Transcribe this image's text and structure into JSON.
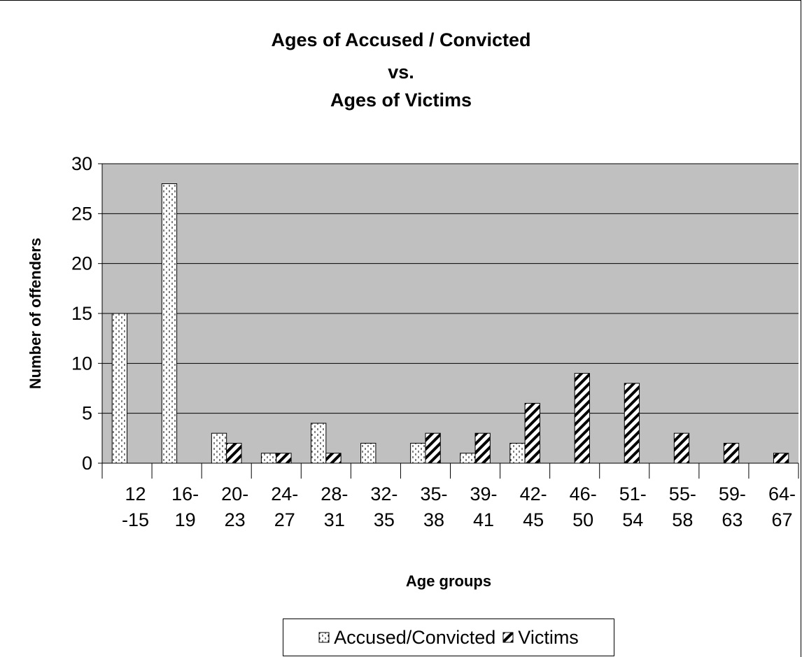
{
  "chart_data": {
    "type": "bar",
    "title": [
      "Ages of Accused / Convicted",
      "vs.",
      "Ages of Victims"
    ],
    "xlabel": "Age groups",
    "ylabel": "Number of offenders",
    "ylim": [
      0,
      30
    ],
    "yticks": [
      0,
      5,
      10,
      15,
      20,
      25,
      30
    ],
    "categories": [
      [
        "12",
        "-15"
      ],
      [
        "16-",
        "19"
      ],
      [
        "20-",
        "23"
      ],
      [
        "24-",
        "27"
      ],
      [
        "28-",
        "31"
      ],
      [
        "32-",
        "35"
      ],
      [
        "35-",
        "38"
      ],
      [
        "39-",
        "41"
      ],
      [
        "42-",
        "45"
      ],
      [
        "46-",
        "50"
      ],
      [
        "51-",
        "54"
      ],
      [
        "55-",
        "58"
      ],
      [
        "59-",
        "63"
      ],
      [
        "64-",
        "67"
      ]
    ],
    "series": [
      {
        "name": "Accused/Convicted",
        "values": [
          15,
          28,
          3,
          1,
          4,
          2,
          2,
          1,
          2,
          0,
          0,
          0,
          0,
          0
        ],
        "pattern": "dotted-dashed"
      },
      {
        "name": "Victims",
        "values": [
          0,
          0,
          2,
          1,
          1,
          0,
          3,
          3,
          6,
          9,
          8,
          3,
          2,
          1
        ],
        "pattern": "diagonal-hatch"
      }
    ],
    "grid": true,
    "legend_position": "bottom-center",
    "colors": {
      "plot_background": "#c0c0c0",
      "bar_fill": "#ffffff",
      "stroke": "#000000"
    }
  }
}
